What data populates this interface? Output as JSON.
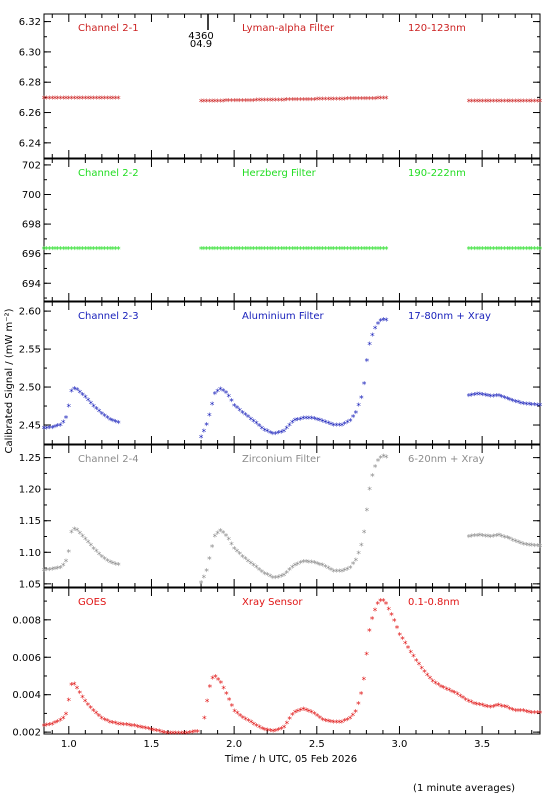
{
  "ylabel": "Calibrated Signal / (mW m⁻²)",
  "xlabel": "Time / h UTC, 05 Feb 2026",
  "footnote": "(1 minute averages)",
  "x_ticks": [
    "1.0",
    "1.5",
    "2.0",
    "2.5",
    "3.0",
    "3.5"
  ],
  "top_annotation": [
    "4360",
    "04.9"
  ],
  "chart_data": [
    {
      "type": "scatter",
      "color": "#cc2222",
      "labels": [
        "Channel 2-1",
        "Lyman-alpha Filter",
        "120-123nm"
      ],
      "xlim": [
        0.85,
        3.85
      ],
      "ylim": [
        6.23,
        6.325
      ],
      "yticks": [
        6.24,
        6.26,
        6.28,
        6.3,
        6.32
      ],
      "ytick_labels": [
        "6.24",
        "6.26",
        "6.28",
        "6.30",
        "6.32"
      ],
      "segments": [
        {
          "x": [
            0.85,
            1.3
          ],
          "y": [
            6.269,
            6.269
          ]
        },
        {
          "x": [
            1.8,
            2.92
          ],
          "y": [
            6.267,
            6.269
          ]
        },
        {
          "x": [
            3.42,
            3.85
          ],
          "y": [
            6.267,
            6.267
          ]
        }
      ]
    },
    {
      "type": "scatter",
      "color": "#22dd22",
      "labels": [
        "Channel 2-2",
        "Herzberg Filter",
        "190-222nm"
      ],
      "xlim": [
        0.85,
        3.85
      ],
      "ylim": [
        692.8,
        702.4
      ],
      "yticks": [
        694,
        696,
        698,
        700,
        702
      ],
      "ytick_labels": [
        "694",
        "696",
        "698",
        "700",
        "702"
      ],
      "segments": [
        {
          "x": [
            0.85,
            1.3
          ],
          "y": [
            696.3,
            696.3
          ]
        },
        {
          "x": [
            1.8,
            2.92
          ],
          "y": [
            696.3,
            696.3
          ]
        },
        {
          "x": [
            3.42,
            3.85
          ],
          "y": [
            696.3,
            696.3
          ]
        }
      ]
    },
    {
      "type": "scatter",
      "color": "#1a22bb",
      "labels": [
        "Channel 2-3",
        "Aluminium Filter",
        "17-80nm + Xray"
      ],
      "xlim": [
        0.85,
        3.85
      ],
      "ylim": [
        2.425,
        2.612
      ],
      "yticks": [
        2.45,
        2.5,
        2.55,
        2.6
      ],
      "ytick_labels": [
        "2.45",
        "2.50",
        "2.55",
        "2.60"
      ],
      "segments": [
        {
          "x": [
            0.85,
            0.9,
            0.95,
            0.98,
            1.0,
            1.02,
            1.05,
            1.1,
            1.15,
            1.2,
            1.25,
            1.3
          ],
          "y": [
            2.445,
            2.446,
            2.449,
            2.456,
            2.474,
            2.498,
            2.496,
            2.486,
            2.474,
            2.464,
            2.456,
            2.452
          ]
        },
        {
          "x": [
            1.8,
            1.83,
            1.86,
            1.88,
            1.92,
            1.96,
            2.0,
            2.06,
            2.12,
            2.18,
            2.24,
            2.3,
            2.36,
            2.42,
            2.48,
            2.54,
            2.6,
            2.65,
            2.7,
            2.74,
            2.78,
            2.8,
            2.82,
            2.84,
            2.86,
            2.88,
            2.9,
            2.92
          ],
          "y": [
            2.433,
            2.447,
            2.47,
            2.49,
            2.497,
            2.49,
            2.475,
            2.464,
            2.454,
            2.443,
            2.437,
            2.441,
            2.455,
            2.458,
            2.458,
            2.454,
            2.449,
            2.449,
            2.454,
            2.467,
            2.492,
            2.53,
            2.556,
            2.57,
            2.58,
            2.586,
            2.588,
            2.587
          ]
        },
        {
          "x": [
            3.42,
            3.48,
            3.55,
            3.6,
            3.65,
            3.7,
            3.75,
            3.8,
            3.85
          ],
          "y": [
            2.488,
            2.49,
            2.487,
            2.488,
            2.484,
            2.48,
            2.477,
            2.476,
            2.475
          ]
        }
      ]
    },
    {
      "type": "scatter",
      "color": "#8c8c8c",
      "labels": [
        "Channel 2-4",
        "Zirconium Filter",
        "6-20nm + Xray"
      ],
      "xlim": [
        0.85,
        3.85
      ],
      "ylim": [
        1.045,
        1.27
      ],
      "yticks": [
        1.05,
        1.1,
        1.15,
        1.2,
        1.25
      ],
      "ytick_labels": [
        "1.05",
        "1.10",
        "1.15",
        "1.20",
        "1.25"
      ],
      "segments": [
        {
          "x": [
            0.85,
            0.9,
            0.95,
            0.98,
            1.0,
            1.02,
            1.05,
            1.1,
            1.15,
            1.2,
            1.25,
            1.3
          ],
          "y": [
            1.071,
            1.072,
            1.075,
            1.082,
            1.1,
            1.137,
            1.134,
            1.12,
            1.105,
            1.092,
            1.083,
            1.079
          ]
        },
        {
          "x": [
            1.8,
            1.83,
            1.86,
            1.88,
            1.92,
            1.96,
            2.0,
            2.06,
            2.12,
            2.18,
            2.24,
            2.3,
            2.36,
            2.42,
            2.48,
            2.54,
            2.6,
            2.65,
            2.7,
            2.74,
            2.78,
            2.8,
            2.82,
            2.84,
            2.86,
            2.88,
            2.9,
            2.92
          ],
          "y": [
            1.051,
            1.066,
            1.1,
            1.124,
            1.134,
            1.123,
            1.105,
            1.09,
            1.078,
            1.066,
            1.058,
            1.062,
            1.078,
            1.084,
            1.083,
            1.078,
            1.069,
            1.069,
            1.074,
            1.088,
            1.118,
            1.16,
            1.2,
            1.225,
            1.24,
            1.248,
            1.252,
            1.25
          ]
        },
        {
          "x": [
            3.42,
            3.48,
            3.55,
            3.6,
            3.65,
            3.7,
            3.75,
            3.8,
            3.85
          ],
          "y": [
            1.124,
            1.126,
            1.124,
            1.126,
            1.122,
            1.117,
            1.112,
            1.11,
            1.109
          ]
        }
      ]
    },
    {
      "type": "scatter",
      "color": "#e01515",
      "labels": [
        "GOES",
        "Xray Sensor",
        "0.1-0.8nm"
      ],
      "xlim": [
        0.85,
        3.85
      ],
      "ylim": [
        0.0019,
        0.0097
      ],
      "yticks": [
        0.002,
        0.004,
        0.006,
        0.008
      ],
      "ytick_labels": [
        "0.002",
        "0.004",
        "0.006",
        "0.008"
      ],
      "segments": [
        {
          "x": [
            0.85,
            0.9,
            0.95,
            0.98,
            1.0,
            1.02,
            1.05,
            1.1,
            1.15,
            1.2,
            1.25,
            1.3,
            1.4,
            1.5,
            1.6,
            1.7,
            1.78
          ],
          "y": [
            0.0023,
            0.0024,
            0.0026,
            0.0028,
            0.0037,
            0.0047,
            0.0043,
            0.0036,
            0.0031,
            0.0027,
            0.0025,
            0.0024,
            0.0023,
            0.0021,
            0.0019,
            0.0019,
            0.002
          ]
        },
        {
          "x": [
            1.82,
            1.84,
            1.86,
            1.88,
            1.92,
            1.96,
            2.0,
            2.06,
            2.12,
            2.18,
            2.24,
            2.3,
            2.36,
            2.42,
            2.48,
            2.54,
            2.6,
            2.65,
            2.7,
            2.74,
            2.78,
            2.8,
            2.82,
            2.84,
            2.86,
            2.88,
            2.9,
            2.92,
            2.96,
            3.0,
            3.05,
            3.1,
            3.15,
            3.2,
            3.25,
            3.3,
            3.35,
            3.4,
            3.45,
            3.5,
            3.55,
            3.6,
            3.65,
            3.7,
            3.75,
            3.8,
            3.85
          ],
          "y": [
            0.0027,
            0.0038,
            0.0047,
            0.005,
            0.0046,
            0.0039,
            0.0031,
            0.0027,
            0.0024,
            0.0021,
            0.002,
            0.0022,
            0.003,
            0.0032,
            0.003,
            0.0026,
            0.0025,
            0.0025,
            0.0027,
            0.0031,
            0.0044,
            0.006,
            0.0075,
            0.0082,
            0.0087,
            0.009,
            0.009,
            0.0088,
            0.0081,
            0.0072,
            0.0065,
            0.0058,
            0.0052,
            0.0047,
            0.0044,
            0.0042,
            0.004,
            0.0037,
            0.0035,
            0.0034,
            0.0033,
            0.0034,
            0.0033,
            0.0031,
            0.0031,
            0.003,
            0.003
          ]
        }
      ]
    }
  ]
}
